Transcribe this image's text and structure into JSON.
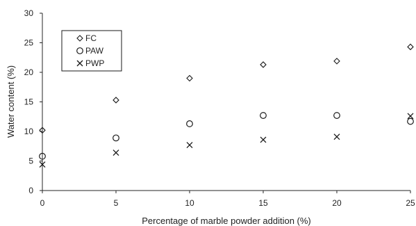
{
  "chart_data": {
    "type": "scatter",
    "title": "",
    "xlabel": "Percentage of marble powder addition (%)",
    "ylabel": "Water content (%)",
    "xlim": [
      0,
      25
    ],
    "ylim": [
      0,
      30
    ],
    "xticks": [
      "0",
      "5",
      "10",
      "15",
      "20",
      "25"
    ],
    "yticks": [
      "0",
      "5",
      "10",
      "15",
      "20",
      "25",
      "30"
    ],
    "grid": false,
    "legend": {
      "placement": "top-left",
      "entries": [
        "FC",
        "PAW",
        "PWP"
      ]
    },
    "series": [
      {
        "name": "FC",
        "marker": "diamond",
        "x": [
          0,
          5,
          10,
          15,
          20,
          25
        ],
        "y": [
          10.2,
          15.3,
          19.0,
          21.3,
          21.9,
          24.3
        ]
      },
      {
        "name": "PAW",
        "marker": "circle",
        "x": [
          0,
          5,
          10,
          15,
          20,
          25
        ],
        "y": [
          5.8,
          8.9,
          11.3,
          12.7,
          12.7,
          11.7
        ]
      },
      {
        "name": "PWP",
        "marker": "cross",
        "x": [
          0,
          5,
          10,
          15,
          20,
          25
        ],
        "y": [
          4.4,
          6.4,
          7.7,
          8.6,
          9.1,
          12.6
        ]
      }
    ],
    "colors": {
      "marker": "#1a1a1a",
      "axis": "#262626"
    }
  }
}
